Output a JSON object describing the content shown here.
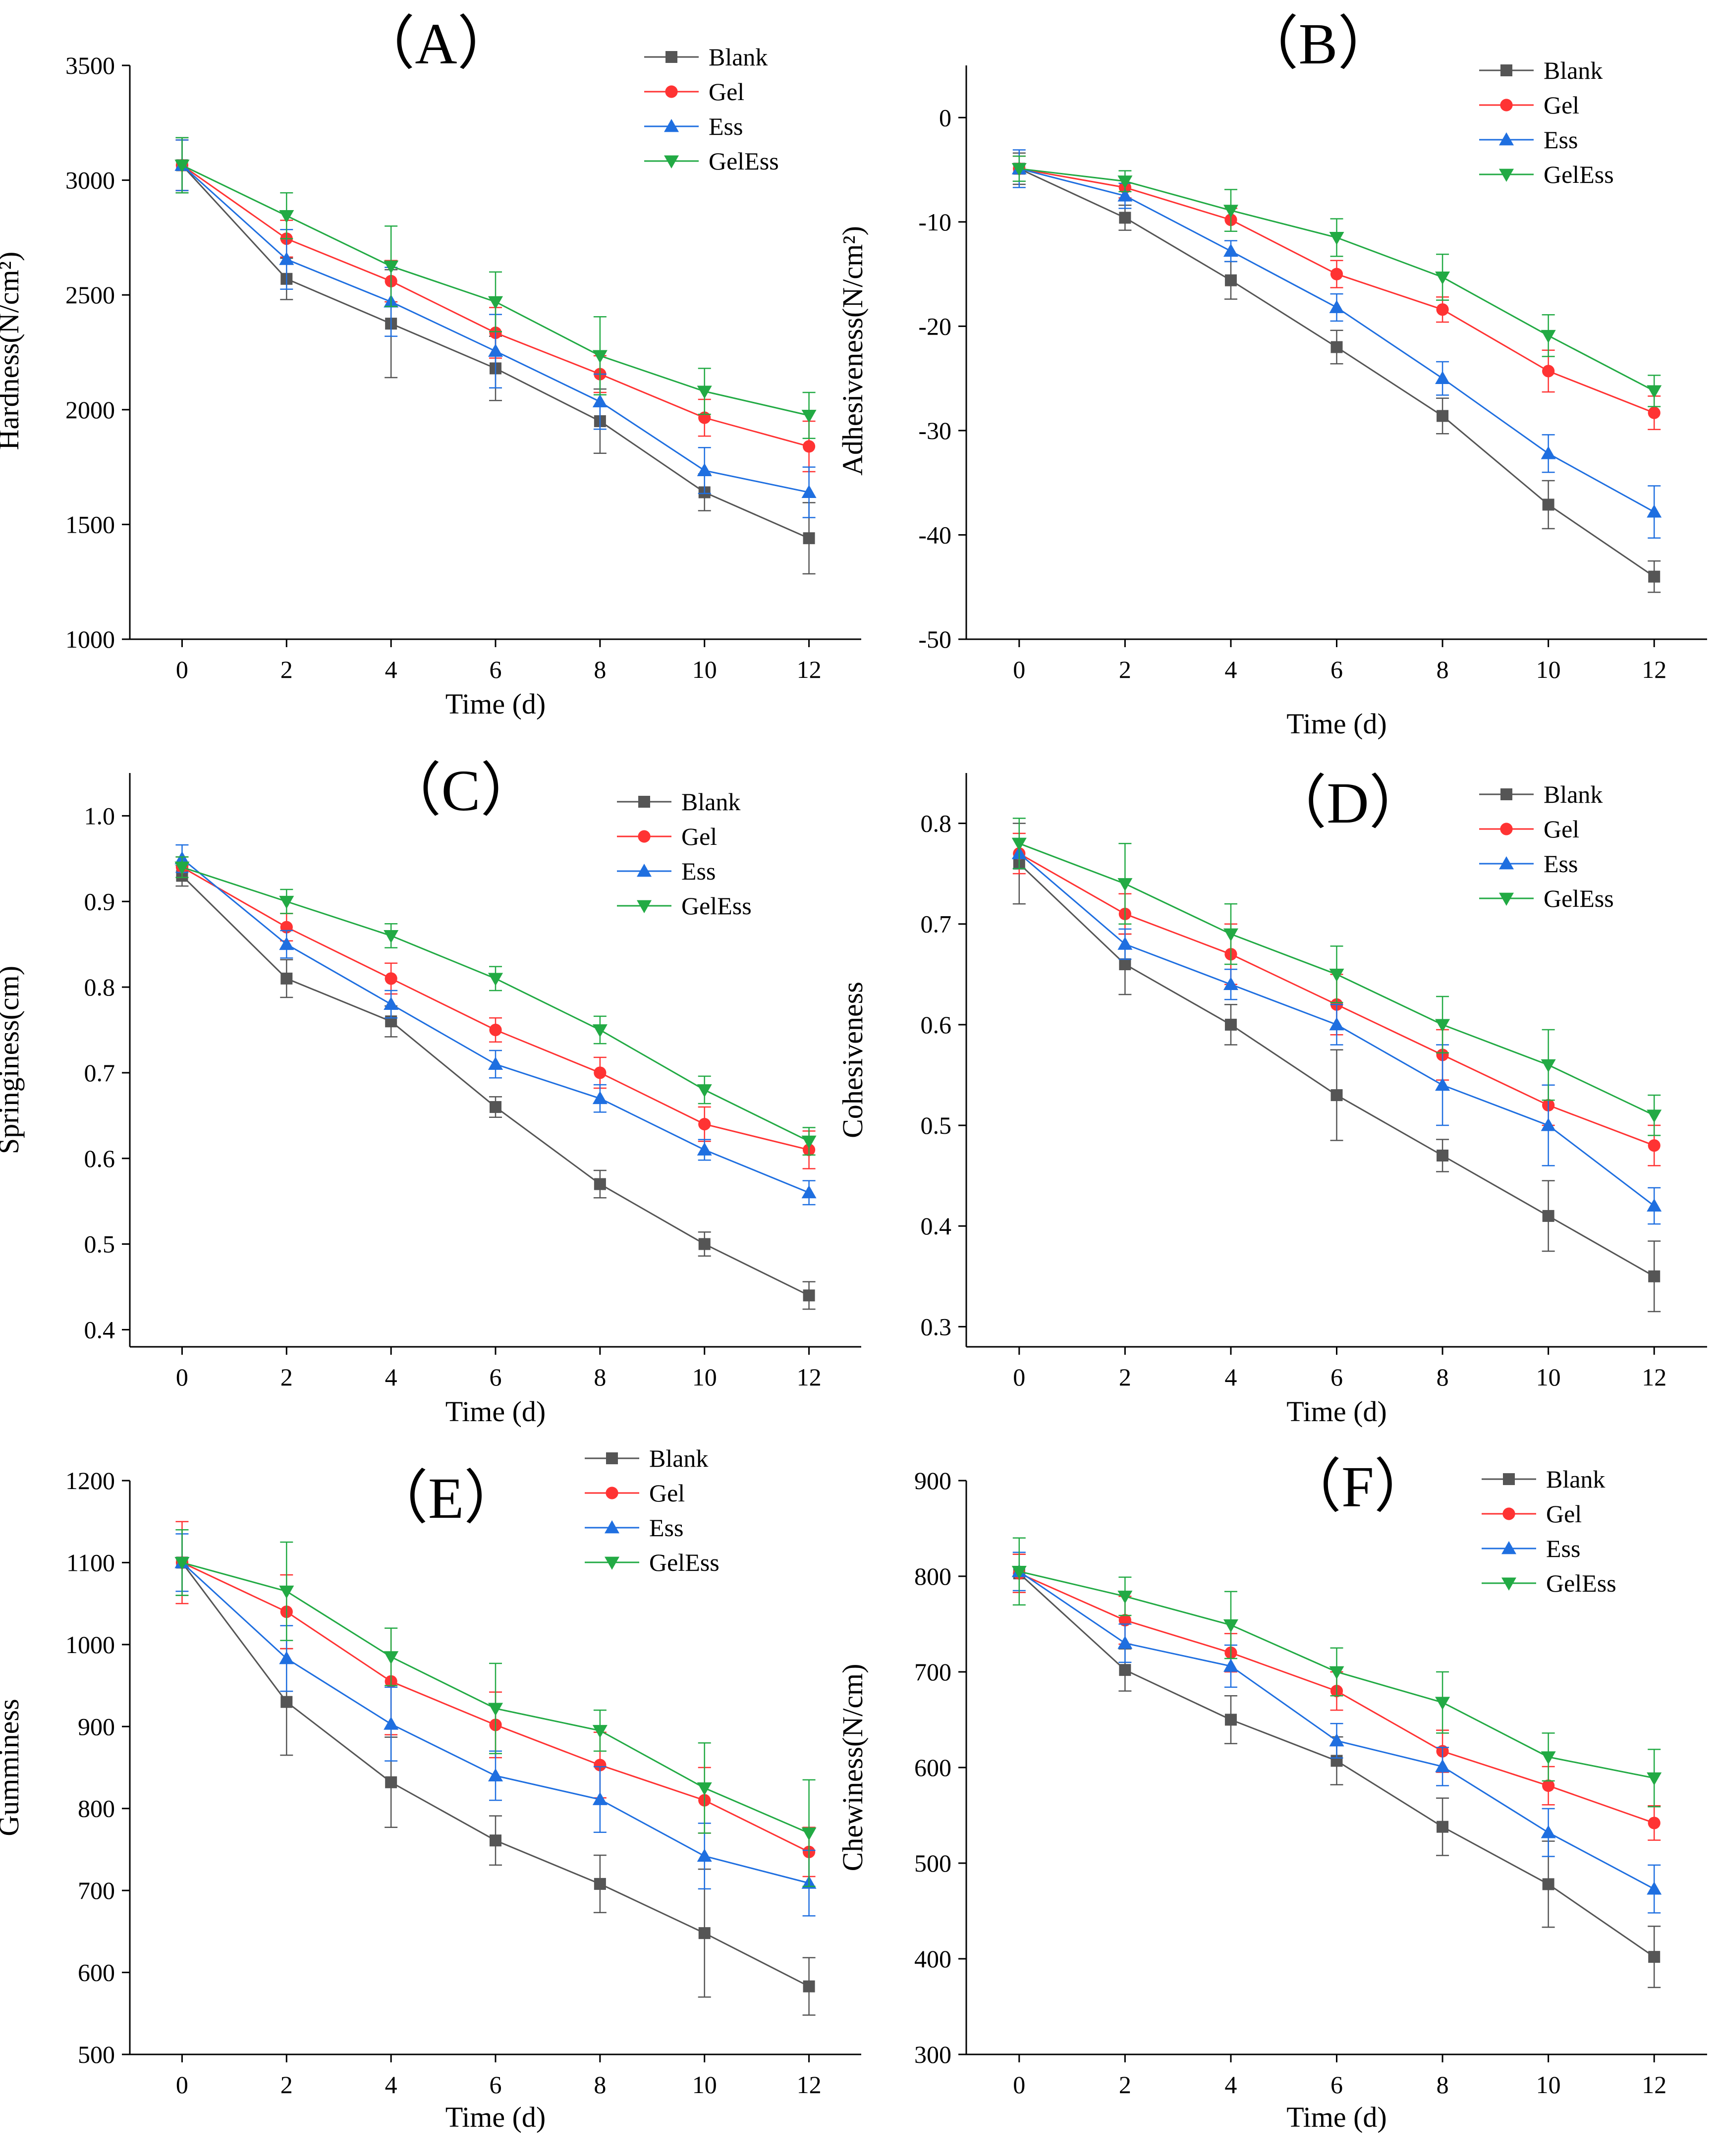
{
  "chart_data": [
    {
      "type": "line",
      "panel_label": "（A）",
      "xlabel": "Time (d)",
      "ylabel": "Hardness(N/cm²)",
      "x": [
        0,
        2,
        4,
        6,
        8,
        10,
        12
      ],
      "xlim": [
        -1,
        13
      ],
      "ylim": [
        1000,
        3500
      ],
      "yticks": [
        1000,
        1500,
        2000,
        2500,
        3000,
        3500
      ],
      "legend_position": "top-right",
      "series": [
        {
          "name": "Blank",
          "color": "#555555",
          "marker": "square",
          "values": [
            3065,
            2570,
            2375,
            2180,
            1950,
            1640,
            1440
          ],
          "errors": [
            120,
            90,
            235,
            140,
            140,
            80,
            155
          ]
        },
        {
          "name": "Gel",
          "color": "#ff3333",
          "marker": "circle",
          "values": [
            3065,
            2745,
            2560,
            2335,
            2155,
            1965,
            1840
          ],
          "errors": [
            110,
            80,
            90,
            110,
            80,
            80,
            110
          ]
        },
        {
          "name": "Ess",
          "color": "#1f6fe0",
          "marker": "triangle-up",
          "values": [
            3065,
            2655,
            2470,
            2255,
            2035,
            1735,
            1640
          ],
          "errors": [
            110,
            130,
            150,
            160,
            120,
            100,
            110
          ]
        },
        {
          "name": "GelEss",
          "color": "#22aa44",
          "marker": "triangle-down",
          "values": [
            3065,
            2845,
            2625,
            2470,
            2235,
            2080,
            1975
          ],
          "errors": [
            120,
            100,
            175,
            130,
            170,
            100,
            100
          ]
        }
      ]
    },
    {
      "type": "line",
      "panel_label": "（B）",
      "xlabel": "Time (d)",
      "ylabel": "Adhesiveness(N/cm²)",
      "x": [
        0,
        2,
        4,
        6,
        8,
        10,
        12
      ],
      "xlim": [
        -1,
        13
      ],
      "ylim": [
        -50,
        5
      ],
      "yticks": [
        -50,
        -40,
        -30,
        -20,
        -10,
        0
      ],
      "legend_position": "top-right",
      "series": [
        {
          "name": "Blank",
          "color": "#555555",
          "marker": "square",
          "values": [
            -4.9,
            -9.6,
            -15.6,
            -22.0,
            -28.6,
            -37.1,
            -44.0
          ],
          "errors": [
            1.5,
            1.2,
            1.8,
            1.6,
            1.7,
            2.3,
            1.5
          ]
        },
        {
          "name": "Gel",
          "color": "#ff3333",
          "marker": "circle",
          "values": [
            -4.9,
            -6.7,
            -9.8,
            -15.0,
            -18.4,
            -24.3,
            -28.3
          ],
          "errors": [
            1.2,
            1.0,
            1.1,
            1.3,
            1.2,
            2.0,
            1.6
          ]
        },
        {
          "name": "Ess",
          "color": "#1f6fe0",
          "marker": "triangle-up",
          "values": [
            -4.9,
            -7.5,
            -12.8,
            -18.2,
            -25.0,
            -32.2,
            -37.8
          ],
          "errors": [
            1.8,
            1.2,
            1.0,
            1.3,
            1.6,
            1.8,
            2.5
          ]
        },
        {
          "name": "GelEss",
          "color": "#22aa44",
          "marker": "triangle-down",
          "values": [
            -4.9,
            -6.1,
            -8.9,
            -11.5,
            -15.3,
            -20.9,
            -26.2
          ],
          "errors": [
            1.2,
            1.0,
            2.0,
            1.8,
            2.2,
            2.0,
            1.5
          ]
        }
      ]
    },
    {
      "type": "line",
      "panel_label": "（C）",
      "xlabel": "Time (d)",
      "ylabel": "Springiness(cm)",
      "x": [
        0,
        2,
        4,
        6,
        8,
        10,
        12
      ],
      "xlim": [
        -1,
        13
      ],
      "ylim": [
        0.38,
        1.05
      ],
      "yticks": [
        0.4,
        0.5,
        0.6,
        0.7,
        0.8,
        0.9,
        1.0
      ],
      "legend_position": "top-right",
      "series": [
        {
          "name": "Blank",
          "color": "#555555",
          "marker": "square",
          "values": [
            0.93,
            0.81,
            0.76,
            0.66,
            0.57,
            0.5,
            0.44
          ],
          "errors": [
            0.012,
            0.022,
            0.018,
            0.012,
            0.016,
            0.014,
            0.016
          ]
        },
        {
          "name": "Gel",
          "color": "#ff3333",
          "marker": "circle",
          "values": [
            0.94,
            0.87,
            0.81,
            0.75,
            0.7,
            0.64,
            0.61
          ],
          "errors": [
            0.012,
            0.016,
            0.018,
            0.014,
            0.018,
            0.02,
            0.022
          ]
        },
        {
          "name": "Ess",
          "color": "#1f6fe0",
          "marker": "triangle-up",
          "values": [
            0.95,
            0.85,
            0.78,
            0.71,
            0.67,
            0.61,
            0.56
          ],
          "errors": [
            0.016,
            0.016,
            0.016,
            0.016,
            0.016,
            0.012,
            0.014
          ]
        },
        {
          "name": "GelEss",
          "color": "#22aa44",
          "marker": "triangle-down",
          "values": [
            0.94,
            0.9,
            0.86,
            0.81,
            0.75,
            0.68,
            0.62
          ],
          "errors": [
            0.012,
            0.014,
            0.014,
            0.014,
            0.016,
            0.016,
            0.016
          ]
        }
      ]
    },
    {
      "type": "line",
      "panel_label": "（D）",
      "xlabel": "Time (d)",
      "ylabel": "Cohesiveness",
      "x": [
        0,
        2,
        4,
        6,
        8,
        10,
        12
      ],
      "xlim": [
        -1,
        13
      ],
      "ylim": [
        0.28,
        0.85
      ],
      "yticks": [
        0.3,
        0.4,
        0.5,
        0.6,
        0.7,
        0.8
      ],
      "legend_position": "top-right",
      "series": [
        {
          "name": "Blank",
          "color": "#555555",
          "marker": "square",
          "values": [
            0.76,
            0.66,
            0.6,
            0.53,
            0.47,
            0.41,
            0.35
          ],
          "errors": [
            0.04,
            0.03,
            0.02,
            0.045,
            0.016,
            0.035,
            0.035
          ]
        },
        {
          "name": "Gel",
          "color": "#ff3333",
          "marker": "circle",
          "values": [
            0.77,
            0.71,
            0.67,
            0.62,
            0.57,
            0.52,
            0.48
          ],
          "errors": [
            0.02,
            0.02,
            0.03,
            0.03,
            0.025,
            0.02,
            0.02
          ]
        },
        {
          "name": "Ess",
          "color": "#1f6fe0",
          "marker": "triangle-up",
          "values": [
            0.77,
            0.68,
            0.64,
            0.6,
            0.54,
            0.5,
            0.42
          ],
          "errors": [
            0.015,
            0.015,
            0.015,
            0.02,
            0.04,
            0.04,
            0.018
          ]
        },
        {
          "name": "GelEss",
          "color": "#22aa44",
          "marker": "triangle-down",
          "values": [
            0.78,
            0.74,
            0.69,
            0.65,
            0.6,
            0.56,
            0.51
          ],
          "errors": [
            0.025,
            0.04,
            0.03,
            0.028,
            0.028,
            0.035,
            0.02
          ]
        }
      ]
    },
    {
      "type": "line",
      "panel_label": "（E）",
      "xlabel": "Time (d)",
      "ylabel": "Gumminess",
      "x": [
        0,
        2,
        4,
        6,
        8,
        10,
        12
      ],
      "xlim": [
        -1,
        13
      ],
      "ylim": [
        500,
        1200
      ],
      "yticks": [
        500,
        600,
        700,
        800,
        900,
        1000,
        1100,
        1200
      ],
      "legend_position": "top-right",
      "series": [
        {
          "name": "Blank",
          "color": "#555555",
          "marker": "square",
          "values": [
            1100,
            930,
            832,
            761,
            708,
            648,
            583
          ],
          "errors": [
            40,
            65,
            55,
            30,
            35,
            78,
            35
          ]
        },
        {
          "name": "Gel",
          "color": "#ff3333",
          "marker": "circle",
          "values": [
            1100,
            1040,
            955,
            902,
            853,
            810,
            747
          ],
          "errors": [
            50,
            45,
            65,
            40,
            40,
            40,
            30
          ]
        },
        {
          "name": "Ess",
          "color": "#1f6fe0",
          "marker": "triangle-up",
          "values": [
            1100,
            983,
            903,
            840,
            811,
            742,
            709
          ],
          "errors": [
            35,
            40,
            45,
            30,
            40,
            40,
            40
          ]
        },
        {
          "name": "GelEss",
          "color": "#22aa44",
          "marker": "triangle-down",
          "values": [
            1100,
            1065,
            985,
            922,
            895,
            825,
            770
          ],
          "errors": [
            40,
            60,
            35,
            55,
            25,
            55,
            65
          ]
        }
      ]
    },
    {
      "type": "line",
      "panel_label": "（F）",
      "xlabel": "Time (d)",
      "ylabel": "Chewiness(N/cm)",
      "x": [
        0,
        2,
        4,
        6,
        8,
        10,
        12
      ],
      "xlim": [
        -1,
        13
      ],
      "ylim": [
        300,
        900
      ],
      "yticks": [
        300,
        400,
        500,
        600,
        700,
        800,
        900
      ],
      "legend_position": "top-right",
      "series": [
        {
          "name": "Blank",
          "color": "#555555",
          "marker": "square",
          "values": [
            803,
            702,
            650,
            607,
            538,
            478,
            402
          ],
          "errors": [
            20,
            22,
            25,
            25,
            30,
            45,
            32
          ]
        },
        {
          "name": "Gel",
          "color": "#ff3333",
          "marker": "circle",
          "values": [
            803,
            754,
            720,
            680,
            617,
            581,
            542
          ],
          "errors": [
            20,
            25,
            20,
            20,
            22,
            20,
            18
          ]
        },
        {
          "name": "Ess",
          "color": "#1f6fe0",
          "marker": "triangle-up",
          "values": [
            805,
            730,
            706,
            628,
            601,
            532,
            473
          ],
          "errors": [
            20,
            20,
            22,
            18,
            20,
            25,
            25
          ]
        },
        {
          "name": "GelEss",
          "color": "#22aa44",
          "marker": "triangle-down",
          "values": [
            805,
            779,
            749,
            700,
            668,
            611,
            589
          ],
          "errors": [
            35,
            20,
            35,
            25,
            32,
            25,
            30
          ]
        }
      ]
    }
  ]
}
